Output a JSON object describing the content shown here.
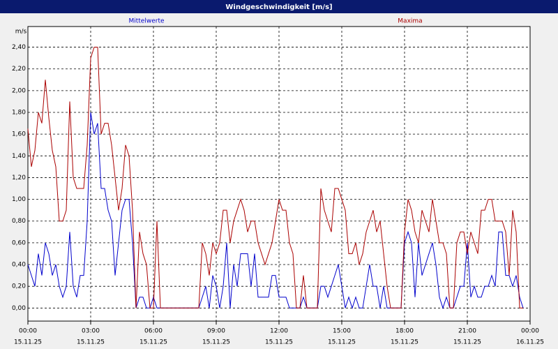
{
  "chart_data": {
    "type": "line",
    "title": "Windgeschwindigkeit [m/s]",
    "y_unit": "m/s",
    "x": [
      0,
      10,
      20,
      30,
      40,
      50,
      60,
      70,
      80,
      90,
      100,
      110,
      120,
      130,
      140,
      150,
      160,
      170,
      180,
      190,
      200,
      210,
      220,
      230,
      240,
      250,
      260,
      270,
      280,
      290,
      300,
      310,
      320,
      330,
      340,
      350,
      360,
      370,
      380,
      390,
      400,
      410,
      420,
      430,
      440,
      450,
      460,
      470,
      480,
      490,
      500,
      510,
      520,
      530,
      540,
      550,
      560,
      570,
      580,
      590,
      600,
      610,
      620,
      630,
      640,
      650,
      660,
      670,
      680,
      690,
      700,
      710,
      720,
      730,
      740,
      750,
      760,
      770,
      780,
      790,
      800,
      810,
      820,
      830,
      840,
      850,
      860,
      870,
      880,
      890,
      900,
      910,
      920,
      930,
      940,
      950,
      960,
      970,
      980,
      990,
      1000,
      1010,
      1020,
      1030,
      1040,
      1050,
      1060,
      1070,
      1080,
      1090,
      1100,
      1110,
      1120,
      1130,
      1140,
      1150,
      1160,
      1170,
      1180,
      1190,
      1200,
      1210,
      1220,
      1230,
      1240,
      1250,
      1260,
      1270,
      1280,
      1290,
      1300,
      1310,
      1320,
      1330,
      1340,
      1350,
      1360,
      1370,
      1380,
      1390,
      1400,
      1410,
      1420
    ],
    "series": [
      {
        "name": "Mittelwerte",
        "color": "#0000cc",
        "values": [
          0.4,
          0.3,
          0.2,
          0.5,
          0.3,
          0.6,
          0.5,
          0.3,
          0.4,
          0.2,
          0.1,
          0.2,
          0.7,
          0.2,
          0.1,
          0.3,
          0.3,
          0.8,
          1.8,
          1.6,
          1.7,
          1.1,
          1.1,
          0.9,
          0.8,
          0.3,
          0.6,
          0.9,
          1.0,
          1.0,
          0.6,
          0,
          0.1,
          0.1,
          0,
          0,
          0.1,
          0,
          0,
          0,
          0,
          0,
          0,
          0,
          0,
          0,
          0,
          0,
          0,
          0,
          0.1,
          0.2,
          0,
          0.3,
          0.2,
          0,
          0.2,
          0.6,
          0,
          0.4,
          0.2,
          0.5,
          0.5,
          0.5,
          0.2,
          0.5,
          0.1,
          0.1,
          0.1,
          0.1,
          0.3,
          0.3,
          0.1,
          0.1,
          0.1,
          0,
          0,
          0,
          0,
          0.1,
          0,
          0,
          0,
          0,
          0.2,
          0.2,
          0.1,
          0.2,
          0.3,
          0.4,
          0.2,
          0,
          0.1,
          0,
          0.1,
          0,
          0,
          0.2,
          0.4,
          0.2,
          0.2,
          0,
          0.2,
          0,
          0,
          0,
          0,
          0,
          0.6,
          0.7,
          0.6,
          0.1,
          0.6,
          0.3,
          0.4,
          0.5,
          0.6,
          0.4,
          0.1,
          0,
          0.1,
          0,
          0,
          0.1,
          0.2,
          0.2,
          0.6,
          0.1,
          0.2,
          0.1,
          0.1,
          0.2,
          0.2,
          0.3,
          0.2,
          0.7,
          0.7,
          0.3,
          0.3,
          0.2,
          0.3,
          0.1,
          0
        ]
      },
      {
        "name": "Maxima",
        "color": "#aa0000",
        "values": [
          1.65,
          1.3,
          1.45,
          1.8,
          1.7,
          2.1,
          1.75,
          1.45,
          1.3,
          0.8,
          0.8,
          0.9,
          1.9,
          1.2,
          1.1,
          1.1,
          1.1,
          1.5,
          2.3,
          2.4,
          2.4,
          1.6,
          1.7,
          1.7,
          1.5,
          1.2,
          0.9,
          1.1,
          1.5,
          1.4,
          0.9,
          0,
          0.7,
          0.5,
          0.4,
          0,
          0,
          0.8,
          0,
          0,
          0,
          0,
          0,
          0,
          0,
          0,
          0,
          0,
          0,
          0,
          0.6,
          0.5,
          0.3,
          0.6,
          0.5,
          0.6,
          0.9,
          0.9,
          0.6,
          0.8,
          0.9,
          1.0,
          0.9,
          0.7,
          0.8,
          0.8,
          0.6,
          0.5,
          0.4,
          0.5,
          0.6,
          0.8,
          1.0,
          0.9,
          0.9,
          0.6,
          0.5,
          0,
          0,
          0.3,
          0,
          0,
          0,
          0,
          1.1,
          0.9,
          0.8,
          0.7,
          1.1,
          1.1,
          1.0,
          0.9,
          0.5,
          0.5,
          0.6,
          0.4,
          0.5,
          0.7,
          0.8,
          0.9,
          0.7,
          0.8,
          0.5,
          0.2,
          0,
          0,
          0,
          0,
          0.7,
          1.0,
          0.9,
          0.7,
          0.6,
          0.9,
          0.8,
          0.7,
          1.0,
          0.8,
          0.6,
          0.6,
          0.5,
          0,
          0,
          0.6,
          0.7,
          0.7,
          0.5,
          0.7,
          0.6,
          0.5,
          0.9,
          0.9,
          1.0,
          1.0,
          0.8,
          0.8,
          0.8,
          0.7,
          0.3,
          0.9,
          0.7,
          0,
          0
        ]
      }
    ],
    "xlim": [
      0,
      1440
    ],
    "xticks": [
      {
        "value": 0,
        "label": "00:00"
      },
      {
        "value": 180,
        "label": "03:00"
      },
      {
        "value": 360,
        "label": "06:00"
      },
      {
        "value": 540,
        "label": "09:00"
      },
      {
        "value": 720,
        "label": "12:00"
      },
      {
        "value": 900,
        "label": "15:00"
      },
      {
        "value": 1080,
        "label": "18:00"
      },
      {
        "value": 1260,
        "label": "21:00"
      },
      {
        "value": 1440,
        "label": "00:00"
      }
    ],
    "xtick_dates": [
      "15.11.25",
      "15.11.25",
      "15.11.25",
      "15.11.25",
      "15.11.25",
      "15.11.25",
      "15.11.25",
      "15.11.25",
      "16.11.25"
    ],
    "ylim": [
      -0.12,
      2.59
    ],
    "yticks": [
      {
        "value": 0,
        "label": "0,00"
      },
      {
        "value": 0.2,
        "label": "0,20"
      },
      {
        "value": 0.4,
        "label": "0,40"
      },
      {
        "value": 0.6,
        "label": "0,60"
      },
      {
        "value": 0.8,
        "label": "0,80"
      },
      {
        "value": 1.0,
        "label": "1,00"
      },
      {
        "value": 1.2,
        "label": "1,20"
      },
      {
        "value": 1.4,
        "label": "1,40"
      },
      {
        "value": 1.6,
        "label": "1,60"
      },
      {
        "value": 1.8,
        "label": "1,80"
      },
      {
        "value": 2.0,
        "label": "2,00"
      },
      {
        "value": 2.2,
        "label": "2,20"
      },
      {
        "value": 2.4,
        "label": "2,40"
      }
    ],
    "grid": true
  }
}
